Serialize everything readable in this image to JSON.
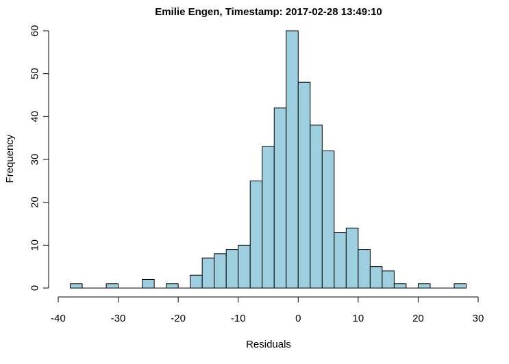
{
  "chart_data": {
    "type": "bar",
    "title": "Emilie Engen, Timestamp: 2017-02-28 13:49:10",
    "xlabel": "Residuals",
    "ylabel": "Frequency",
    "bar_color": "#9ecfe0",
    "edge_color": "#000000",
    "bin_width": 2,
    "bin_start": -38,
    "values": [
      1,
      0,
      0,
      1,
      0,
      0,
      2,
      0,
      1,
      0,
      3,
      7,
      8,
      9,
      10,
      25,
      33,
      42,
      60,
      48,
      38,
      32,
      13,
      14,
      9,
      5,
      4,
      1,
      0,
      1,
      0,
      0,
      1
    ],
    "xlim": [
      -40,
      30
    ],
    "ylim": [
      0,
      60
    ],
    "xticks": [
      -40,
      -30,
      -20,
      -10,
      0,
      10,
      20,
      30
    ],
    "yticks": [
      0,
      10,
      20,
      30,
      40,
      50,
      60
    ],
    "grid": false
  }
}
